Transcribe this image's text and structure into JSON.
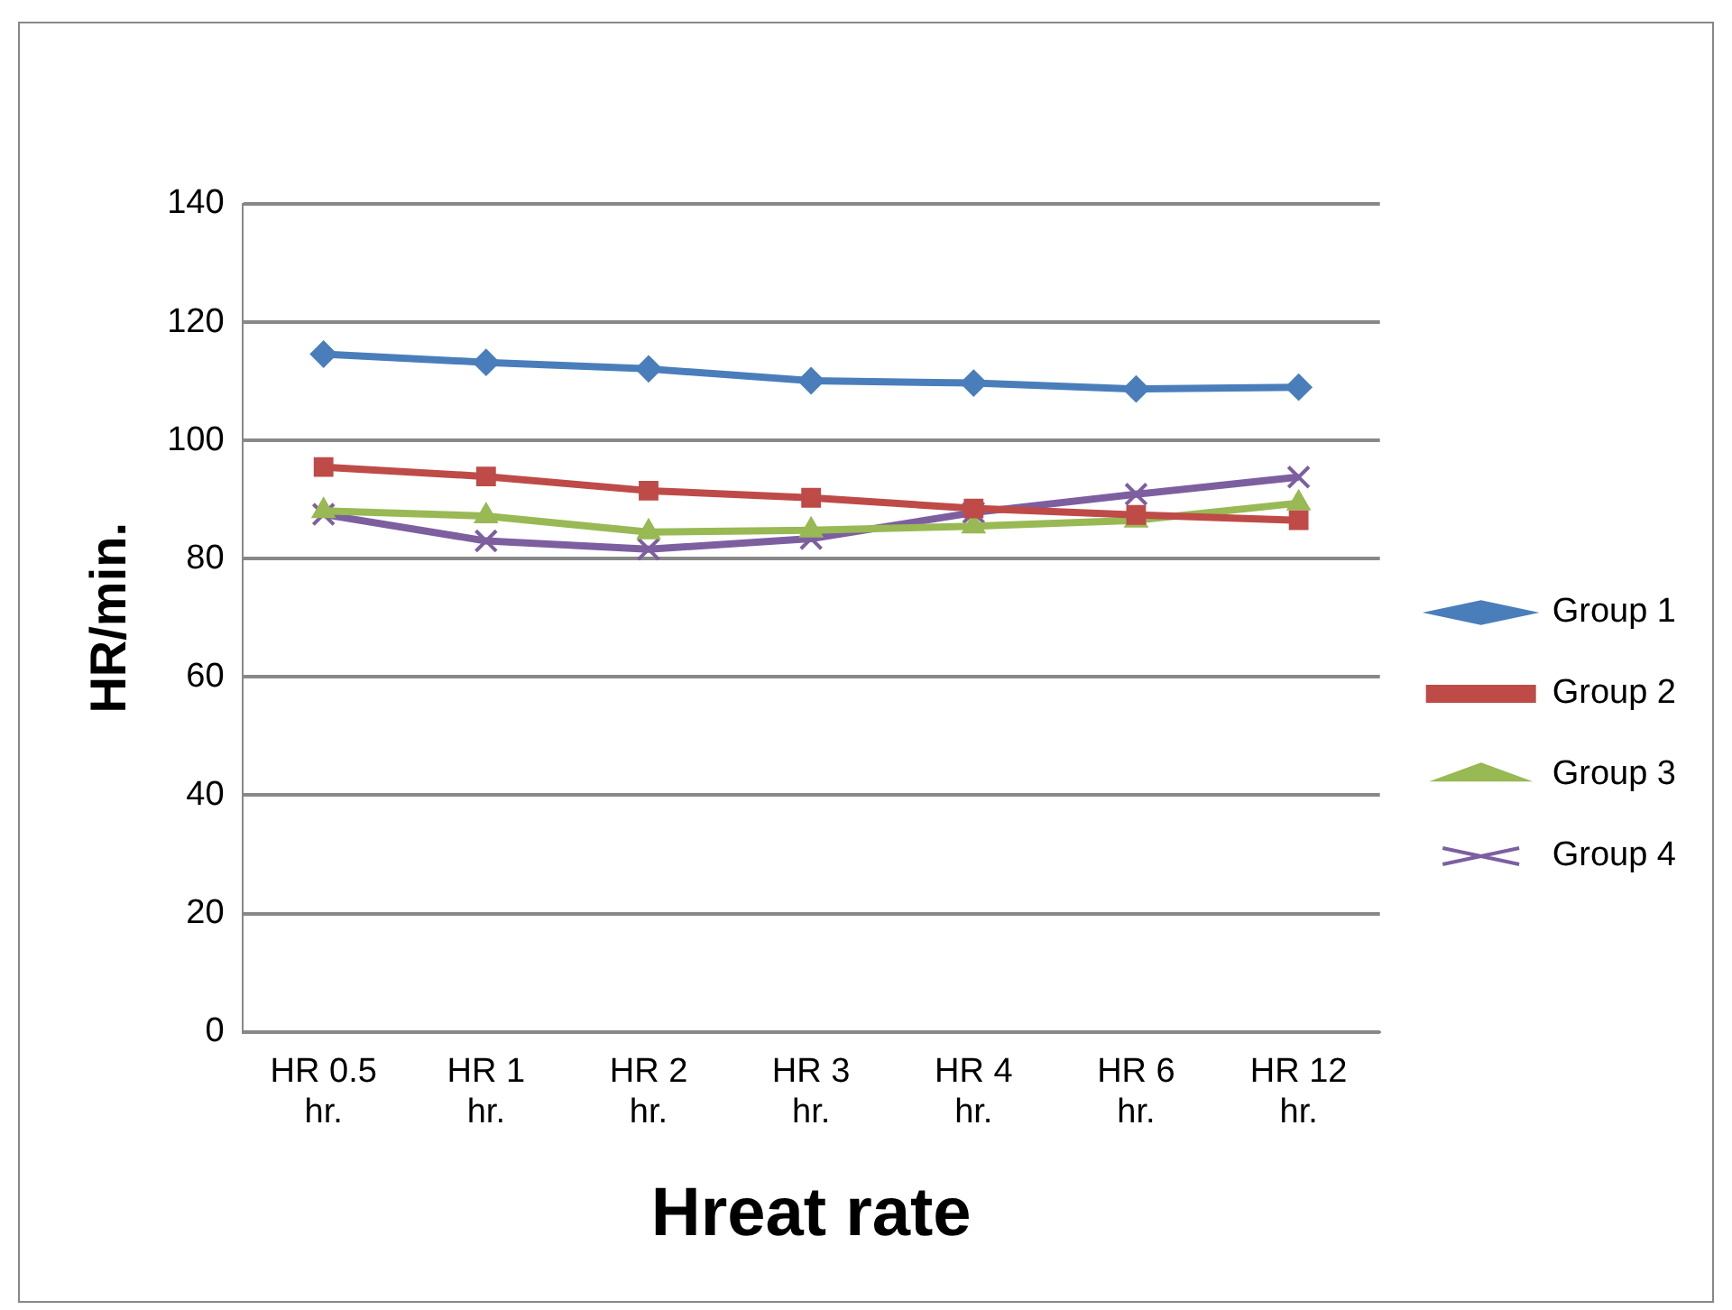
{
  "chart_data": {
    "type": "line",
    "xlabel": "Hreat rate",
    "ylabel": "HR/min.",
    "categories": [
      "HR 0.5 hr.",
      "HR 1 hr.",
      "HR 2 hr.",
      "HR 3 hr.",
      "HR 4 hr.",
      "HR 6 hr.",
      "HR 12 hr."
    ],
    "series": [
      {
        "name": "Group 1",
        "color": "#4a7ebb",
        "marker": "diamond",
        "values": [
          114.6,
          113.2,
          112.1,
          110.1,
          109.7,
          108.7,
          109.0
        ]
      },
      {
        "name": "Group 2",
        "color": "#be4b48",
        "marker": "square",
        "values": [
          95.5,
          93.9,
          91.5,
          90.3,
          88.5,
          87.4,
          86.5
        ]
      },
      {
        "name": "Group 3",
        "color": "#98b954",
        "marker": "triangle",
        "values": [
          88.1,
          87.2,
          84.5,
          84.8,
          85.5,
          86.5,
          89.4
        ]
      },
      {
        "name": "Group 4",
        "color": "#7d5fa0",
        "marker": "cross",
        "values": [
          87.5,
          83.0,
          81.6,
          83.4,
          87.8,
          90.9,
          93.8
        ]
      }
    ],
    "ylim": [
      0,
      140
    ],
    "yticks": [
      0,
      20,
      40,
      60,
      80,
      100,
      120,
      140
    ],
    "grid": "y",
    "legend": "right"
  }
}
